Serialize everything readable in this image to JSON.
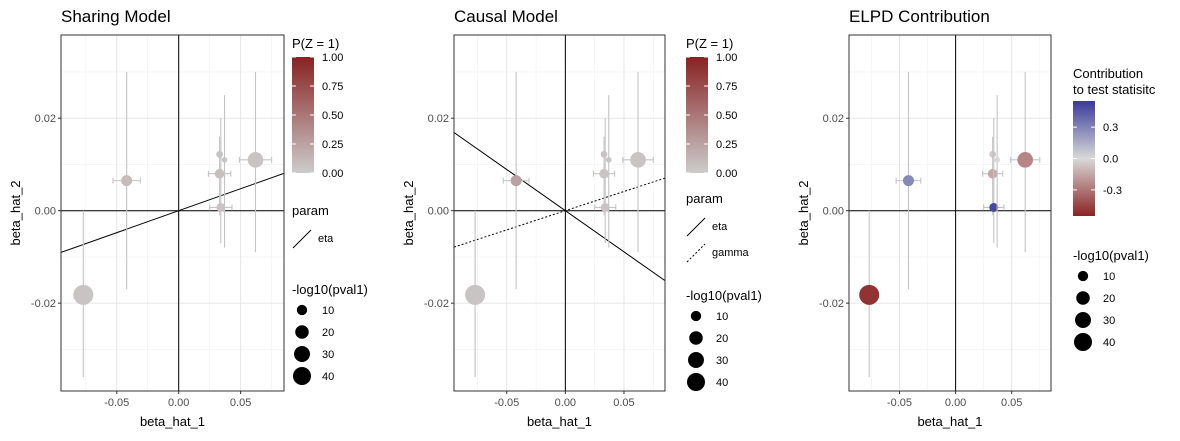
{
  "chart_data": [
    {
      "type": "scatter",
      "title": "Sharing Model",
      "xlabel": "beta_hat_1",
      "ylabel": "beta_hat_2",
      "xlim": [
        -0.095,
        0.085
      ],
      "ylim": [
        -0.039,
        0.038
      ],
      "x_ticks": [
        -0.05,
        0.0,
        0.05
      ],
      "y_ticks": [
        -0.02,
        0.0,
        0.02
      ],
      "x_tick_labels": [
        "-0.05",
        "0.00",
        "0.05"
      ],
      "y_tick_labels": [
        "-0.02",
        "0.00",
        "0.02"
      ],
      "grid": true,
      "color_scale": {
        "title": "P(Z = 1)",
        "low": "#cccccc",
        "high": "#882222",
        "ticks": [
          "0.00",
          "0.25",
          "0.50",
          "0.75",
          "1.00"
        ],
        "range": [
          0,
          1
        ]
      },
      "param_legend": {
        "title": "param",
        "entries": [
          {
            "label": "eta",
            "dash": "solid"
          }
        ]
      },
      "size_legend": {
        "title": "-log10(pval1)",
        "entries": [
          "10",
          "20",
          "30",
          "40"
        ]
      },
      "lines": [
        {
          "name": "eta",
          "slope": 0.095,
          "dash": "solid"
        }
      ],
      "points": [
        {
          "x": -0.042,
          "y": 0.0065,
          "xerr": 0.011,
          "ylo": -0.017,
          "yhi": 0.03,
          "size": 9,
          "p": 0.1
        },
        {
          "x": -0.077,
          "y": -0.0182,
          "xerr": 0.0,
          "ylo": -0.036,
          "yhi": 0.0,
          "size": 40,
          "p": 0.05
        },
        {
          "x": 0.033,
          "y": 0.0122,
          "xerr": 0.0,
          "ylo": 0.0122,
          "yhi": 0.0122,
          "size": 2,
          "p": 0.05
        },
        {
          "x": 0.033,
          "y": 0.008,
          "xerr": 0.009,
          "ylo": -0.001,
          "yhi": 0.016,
          "size": 6,
          "p": 0.08
        },
        {
          "x": 0.034,
          "y": 0.0007,
          "xerr": 0.009,
          "ylo": -0.007,
          "yhi": 0.02,
          "size": 5,
          "p": 0.05
        },
        {
          "x": 0.037,
          "y": 0.011,
          "xerr": 0.0,
          "ylo": -0.008,
          "yhi": 0.025,
          "size": 1,
          "p": 0.05
        },
        {
          "x": 0.062,
          "y": 0.011,
          "xerr": 0.013,
          "ylo": -0.009,
          "yhi": 0.03,
          "size": 22,
          "p": 0.05
        }
      ]
    },
    {
      "type": "scatter",
      "title": "Causal Model",
      "xlabel": "beta_hat_1",
      "ylabel": "beta_hat_2",
      "xlim": [
        -0.095,
        0.085
      ],
      "ylim": [
        -0.039,
        0.038
      ],
      "x_ticks": [
        -0.05,
        0.0,
        0.05
      ],
      "y_ticks": [
        -0.02,
        0.0,
        0.02
      ],
      "x_tick_labels": [
        "-0.05",
        "0.00",
        "0.05"
      ],
      "y_tick_labels": [
        "-0.02",
        "0.00",
        "0.02"
      ],
      "grid": true,
      "color_scale": {
        "title": "P(Z = 1)",
        "low": "#cccccc",
        "high": "#882222",
        "ticks": [
          "0.00",
          "0.25",
          "0.50",
          "0.75",
          "1.00"
        ],
        "range": [
          0,
          1
        ]
      },
      "param_legend": {
        "title": "param",
        "entries": [
          {
            "label": "eta",
            "dash": "solid"
          },
          {
            "label": "gamma",
            "dash": "dotted"
          }
        ]
      },
      "size_legend": {
        "title": "-log10(pval1)",
        "entries": [
          "10",
          "20",
          "30",
          "40"
        ]
      },
      "lines": [
        {
          "name": "eta",
          "slope": -0.178,
          "dash": "solid"
        },
        {
          "name": "gamma",
          "slope": 0.083,
          "dash": "dotted"
        }
      ],
      "points": [
        {
          "x": -0.042,
          "y": 0.0065,
          "xerr": 0.011,
          "ylo": -0.017,
          "yhi": 0.03,
          "size": 9,
          "p": 0.25
        },
        {
          "x": -0.077,
          "y": -0.0182,
          "xerr": 0.0,
          "ylo": -0.036,
          "yhi": 0.0,
          "size": 40,
          "p": 0.05
        },
        {
          "x": 0.033,
          "y": 0.0122,
          "xerr": 0.0,
          "ylo": 0.0122,
          "yhi": 0.0122,
          "size": 2,
          "p": 0.05
        },
        {
          "x": 0.033,
          "y": 0.008,
          "xerr": 0.009,
          "ylo": -0.001,
          "yhi": 0.016,
          "size": 6,
          "p": 0.05
        },
        {
          "x": 0.034,
          "y": 0.0007,
          "xerr": 0.009,
          "ylo": -0.007,
          "yhi": 0.02,
          "size": 5,
          "p": 0.05
        },
        {
          "x": 0.037,
          "y": 0.011,
          "xerr": 0.0,
          "ylo": -0.008,
          "yhi": 0.025,
          "size": 1,
          "p": 0.05
        },
        {
          "x": 0.062,
          "y": 0.011,
          "xerr": 0.013,
          "ylo": -0.009,
          "yhi": 0.03,
          "size": 22,
          "p": 0.05
        }
      ]
    },
    {
      "type": "scatter",
      "title": "ELPD Contribution",
      "xlabel": "beta_hat_1",
      "ylabel": "beta_hat_2",
      "xlim": [
        -0.095,
        0.085
      ],
      "ylim": [
        -0.039,
        0.038
      ],
      "x_ticks": [
        -0.05,
        0.0,
        0.05
      ],
      "y_ticks": [
        -0.02,
        0.0,
        0.02
      ],
      "x_tick_labels": [
        "-0.05",
        "0.00",
        "0.05"
      ],
      "y_tick_labels": [
        "-0.02",
        "0.00",
        "0.02"
      ],
      "grid": true,
      "color_scale": {
        "title_lines": [
          "Contribution",
          "to test statisitc"
        ],
        "low": "#8b2222",
        "mid": "#d9d9d9",
        "high": "#3a3a9a",
        "ticks": [
          "-0.3",
          "0.0",
          "0.3"
        ],
        "range": [
          -0.55,
          0.55
        ]
      },
      "size_legend": {
        "title": "-log10(pval1)",
        "entries": [
          "10",
          "20",
          "30",
          "40"
        ]
      },
      "lines": [],
      "points": [
        {
          "x": -0.042,
          "y": 0.0065,
          "xerr": 0.011,
          "ylo": -0.017,
          "yhi": 0.03,
          "size": 9,
          "c": 0.28
        },
        {
          "x": -0.077,
          "y": -0.0182,
          "xerr": 0.0,
          "ylo": -0.036,
          "yhi": 0.0,
          "size": 40,
          "c": -0.5
        },
        {
          "x": 0.033,
          "y": 0.0122,
          "xerr": 0.0,
          "ylo": 0.0122,
          "yhi": 0.0122,
          "size": 2,
          "c": -0.05
        },
        {
          "x": 0.033,
          "y": 0.008,
          "xerr": 0.009,
          "ylo": -0.001,
          "yhi": 0.016,
          "size": 6,
          "c": -0.15
        },
        {
          "x": 0.034,
          "y": 0.0007,
          "xerr": 0.009,
          "ylo": -0.007,
          "yhi": 0.02,
          "size": 5,
          "c": 0.5
        },
        {
          "x": 0.037,
          "y": 0.011,
          "xerr": 0.0,
          "ylo": -0.008,
          "yhi": 0.025,
          "size": 1,
          "c": 0.0
        },
        {
          "x": 0.062,
          "y": 0.011,
          "xerr": 0.013,
          "ylo": -0.009,
          "yhi": 0.03,
          "size": 22,
          "c": -0.25
        }
      ]
    }
  ]
}
